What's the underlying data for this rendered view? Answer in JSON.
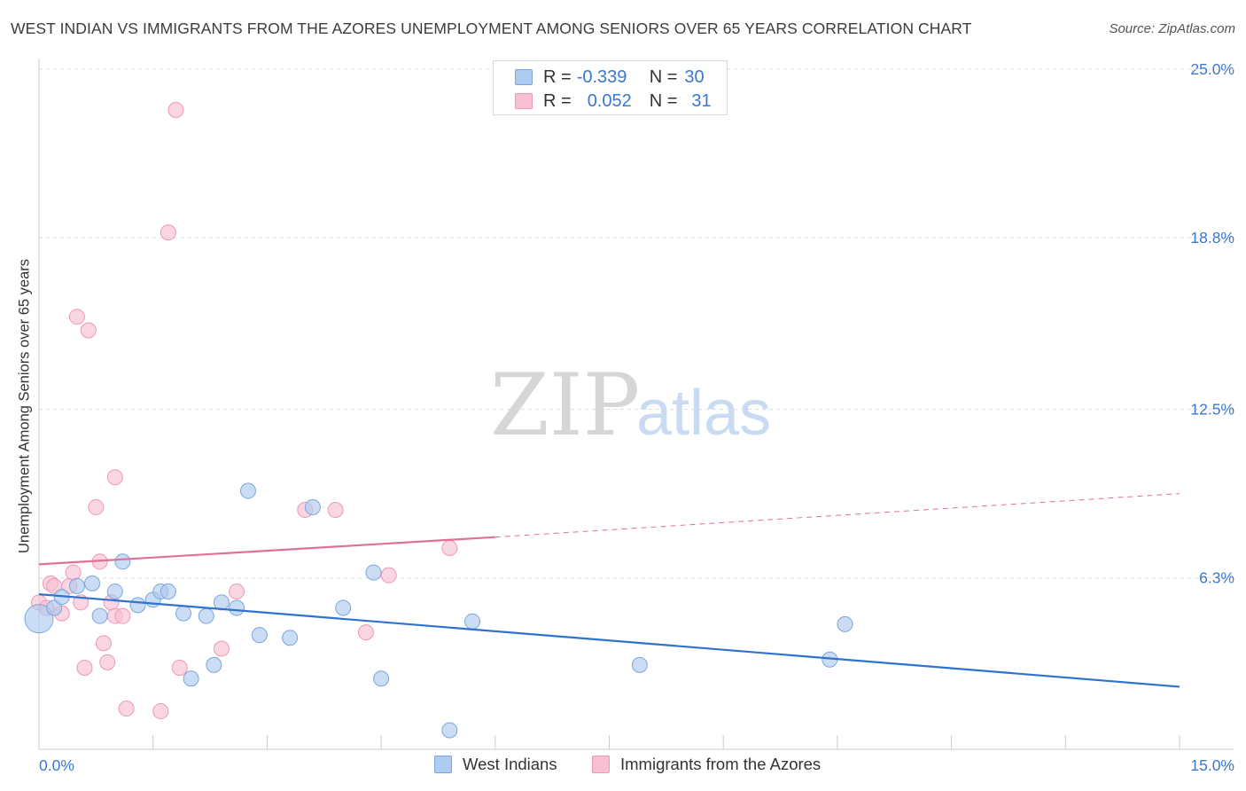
{
  "header": {
    "title": "WEST INDIAN VS IMMIGRANTS FROM THE AZORES UNEMPLOYMENT AMONG SENIORS OVER 65 YEARS CORRELATION CHART",
    "source": "Source: ZipAtlas.com"
  },
  "watermark": {
    "zip": "ZIP",
    "atlas": "atlas"
  },
  "legend": {
    "row1": {
      "r_label": "R =",
      "r_value": "-0.339",
      "n_label": "N =",
      "n_value": "30"
    },
    "row2": {
      "r_label": "R =",
      "r_value": "0.052",
      "n_label": "N =",
      "n_value": "31"
    }
  },
  "colors": {
    "blue_fill": "#aecbf0",
    "blue_stroke": "#7aa6dd",
    "blue_line": "#2f72cf",
    "pink_fill": "#f6c0d2",
    "pink_stroke": "#ee98b6",
    "pink_line": "#e0709a",
    "grid": "#dddddd",
    "tick_text": "#3a78cf"
  },
  "chart_data": {
    "type": "scatter",
    "title": "WEST INDIAN VS IMMIGRANTS FROM THE AZORES UNEMPLOYMENT AMONG SENIORS OVER 65 YEARS CORRELATION CHART",
    "xlabel": "",
    "ylabel": "Unemployment Among Seniors over 65 years",
    "xlim": [
      0,
      15
    ],
    "ylim": [
      0,
      25
    ],
    "x_tick_labels": [
      "0.0%",
      "15.0%"
    ],
    "y_ticks": [
      6.3,
      12.5,
      18.8,
      25.0
    ],
    "y_tick_labels": [
      "6.3%",
      "12.5%",
      "18.8%",
      "25.0%"
    ],
    "grid": "horizontal dashed",
    "legend_position": "bottom",
    "series": [
      {
        "name": "West Indians",
        "color": "#aecbf0",
        "r": -0.339,
        "n": 30,
        "trend": {
          "x": [
            0,
            15
          ],
          "y": [
            5.7,
            2.3
          ]
        },
        "points": [
          {
            "x": 0.0,
            "y": 4.8,
            "big": true
          },
          {
            "x": 0.2,
            "y": 5.2
          },
          {
            "x": 0.3,
            "y": 5.6
          },
          {
            "x": 0.5,
            "y": 6.0
          },
          {
            "x": 0.7,
            "y": 6.1
          },
          {
            "x": 0.8,
            "y": 4.9
          },
          {
            "x": 1.0,
            "y": 5.8
          },
          {
            "x": 1.1,
            "y": 6.9
          },
          {
            "x": 1.3,
            "y": 5.3
          },
          {
            "x": 1.5,
            "y": 5.5
          },
          {
            "x": 1.6,
            "y": 5.8
          },
          {
            "x": 1.7,
            "y": 5.8
          },
          {
            "x": 1.9,
            "y": 5.0
          },
          {
            "x": 2.0,
            "y": 2.6
          },
          {
            "x": 2.2,
            "y": 4.9
          },
          {
            "x": 2.3,
            "y": 3.1
          },
          {
            "x": 2.4,
            "y": 5.4
          },
          {
            "x": 2.6,
            "y": 5.2
          },
          {
            "x": 2.75,
            "y": 9.5
          },
          {
            "x": 2.9,
            "y": 4.2
          },
          {
            "x": 3.3,
            "y": 4.1
          },
          {
            "x": 3.6,
            "y": 8.9
          },
          {
            "x": 4.0,
            "y": 5.2
          },
          {
            "x": 4.4,
            "y": 6.5
          },
          {
            "x": 4.5,
            "y": 2.6
          },
          {
            "x": 5.4,
            "y": 0.7
          },
          {
            "x": 5.7,
            "y": 4.7
          },
          {
            "x": 7.9,
            "y": 3.1
          },
          {
            "x": 10.4,
            "y": 3.3
          },
          {
            "x": 10.6,
            "y": 4.6
          }
        ]
      },
      {
        "name": "Immigrants from the Azores",
        "color": "#f6c0d2",
        "r": 0.052,
        "n": 31,
        "trend": {
          "x": [
            0,
            6
          ],
          "y": [
            6.8,
            7.8
          ],
          "dashed_to": [
            15,
            9.4
          ]
        },
        "points": [
          {
            "x": 0.0,
            "y": 5.4
          },
          {
            "x": 0.1,
            "y": 5.2
          },
          {
            "x": 0.15,
            "y": 6.1
          },
          {
            "x": 0.2,
            "y": 6.0
          },
          {
            "x": 0.3,
            "y": 5.0
          },
          {
            "x": 0.4,
            "y": 6.0
          },
          {
            "x": 0.45,
            "y": 6.5
          },
          {
            "x": 0.5,
            "y": 15.9
          },
          {
            "x": 0.55,
            "y": 5.4
          },
          {
            "x": 0.6,
            "y": 3.0
          },
          {
            "x": 0.65,
            "y": 15.4
          },
          {
            "x": 0.75,
            "y": 8.9
          },
          {
            "x": 0.8,
            "y": 6.9
          },
          {
            "x": 0.85,
            "y": 3.9
          },
          {
            "x": 0.9,
            "y": 3.2
          },
          {
            "x": 0.95,
            "y": 5.4
          },
          {
            "x": 1.0,
            "y": 10.0
          },
          {
            "x": 1.0,
            "y": 4.9
          },
          {
            "x": 1.1,
            "y": 4.9
          },
          {
            "x": 1.15,
            "y": 1.5
          },
          {
            "x": 1.6,
            "y": 1.4
          },
          {
            "x": 1.7,
            "y": 19.0
          },
          {
            "x": 1.8,
            "y": 23.5
          },
          {
            "x": 1.85,
            "y": 3.0
          },
          {
            "x": 2.4,
            "y": 3.7
          },
          {
            "x": 2.6,
            "y": 5.8
          },
          {
            "x": 3.5,
            "y": 8.8
          },
          {
            "x": 4.3,
            "y": 4.3
          },
          {
            "x": 4.6,
            "y": 6.4
          },
          {
            "x": 5.4,
            "y": 7.4
          },
          {
            "x": 3.9,
            "y": 8.8
          }
        ]
      }
    ]
  }
}
